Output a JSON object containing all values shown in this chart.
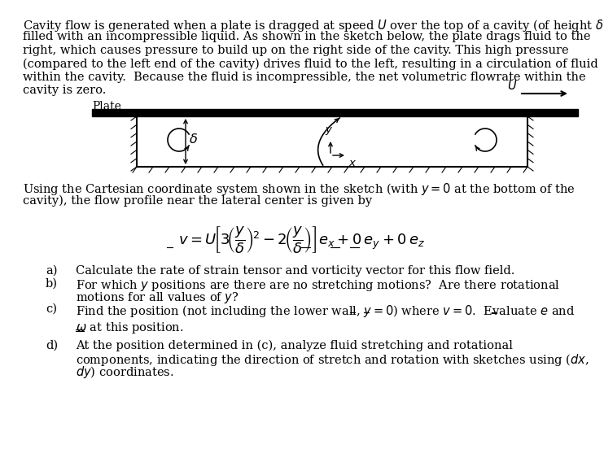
{
  "bg_color": "#ffffff",
  "text_color": "#000000",
  "fig_width": 7.42,
  "fig_height": 5.79,
  "body_fontsize": 10.5,
  "para_lines": [
    "Cavity flow is generated when a plate is dragged at speed $U$ over the top of a cavity (of height $\\delta$)",
    "filled with an incompressible liquid. As shown in the sketch below, the plate drags fluid to the",
    "right, which causes pressure to build up on the right side of the cavity. This high pressure",
    "(compared to the left end of the cavity) drives fluid to the left, resulting in a circulation of fluid",
    "within the cavity.  Because the fluid is incompressible, the net volumetric flowrate within the",
    "cavity is zero."
  ],
  "coord_lines": [
    "Using the Cartesian coordinate system shown in the sketch (with $y = 0$ at the bottom of the",
    "cavity), the flow profile near the lateral center is given by"
  ],
  "item_a": "Calculate the rate of strain tensor and vorticity vector for this flow field.",
  "item_b1": "For which $y$ positions are there are no stretching motions?  Are there rotational",
  "item_b2": "motions for all values of $y$?",
  "item_c1": "Find the position (not including the lower wall, $y = 0$) where $v = 0$.  Evaluate $e$ and",
  "item_c2": "$\\omega$ at this position.",
  "item_d1": "At the position determined in (c), analyze fluid stretching and rotational",
  "item_d2": "components, indicating the direction of stretch and rotation with sketches using ($dx$,",
  "item_d3": "$dy$) coordinates."
}
